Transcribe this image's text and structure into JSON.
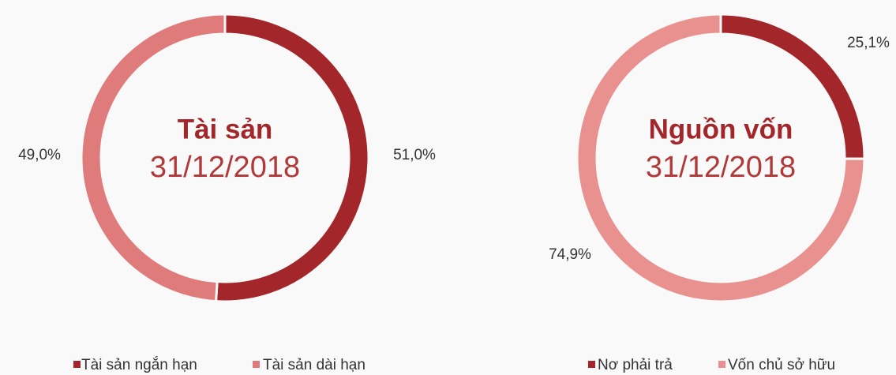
{
  "chart_data": [
    {
      "type": "donut",
      "title": "Tài sản",
      "subtitle": "31/12/2018",
      "categories": [
        "Tài sản ngắn hạn",
        "Tài sản dài hạn"
      ],
      "values": [
        51.0,
        49.0
      ],
      "value_labels": [
        "51,0%",
        "49,0%"
      ],
      "colors": [
        "#a3262a",
        "#e07b7b"
      ]
    },
    {
      "type": "donut",
      "title": "Nguồn vốn",
      "subtitle": "31/12/2018",
      "categories": [
        "Nơ phải trả",
        "Vốn chủ sở hữu"
      ],
      "values": [
        25.1,
        74.9
      ],
      "value_labels": [
        "25,1%",
        "74,9%"
      ],
      "colors": [
        "#a3262a",
        "#e8918f"
      ]
    }
  ]
}
